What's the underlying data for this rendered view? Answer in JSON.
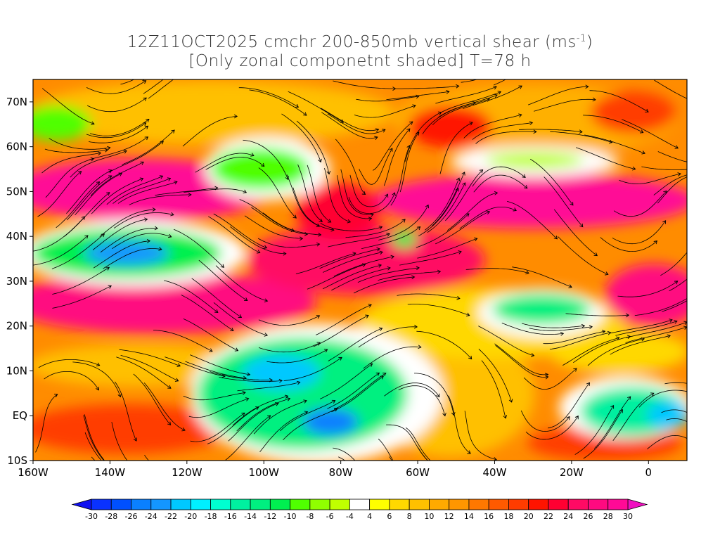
{
  "title": {
    "line1": "12Z11OCT2025 cmchr 200-850mb vertical shear (ms",
    "line1_sup": "-1",
    "line1_end": ")",
    "line2": "[Only zonal componetnt shaded] T=78 h"
  },
  "axes": {
    "lat_labels": [
      {
        "label": "70N",
        "lat": 70
      },
      {
        "label": "60N",
        "lat": 60
      },
      {
        "label": "50N",
        "lat": 50
      },
      {
        "label": "40N",
        "lat": 40
      },
      {
        "label": "30N",
        "lat": 30
      },
      {
        "label": "20N",
        "lat": 20
      },
      {
        "label": "10N",
        "lat": 10
      },
      {
        "label": "EQ",
        "lat": 0
      },
      {
        "label": "10S",
        "lat": -10
      }
    ],
    "lon_labels": [
      {
        "label": "160W",
        "lon": -160
      },
      {
        "label": "140W",
        "lon": -140
      },
      {
        "label": "120W",
        "lon": -120
      },
      {
        "label": "100W",
        "lon": -100
      },
      {
        "label": "80W",
        "lon": -80
      },
      {
        "label": "60W",
        "lon": -60
      },
      {
        "label": "40W",
        "lon": -40
      },
      {
        "label": "20W",
        "lon": -20
      },
      {
        "label": "0",
        "lon": 0
      }
    ],
    "lon_range": [
      -160,
      10
    ],
    "lat_range": [
      -10,
      75
    ]
  },
  "colorbar": {
    "labels": [
      "-30",
      "-28",
      "-26",
      "-24",
      "-22",
      "-20",
      "-18",
      "-16",
      "-14",
      "-12",
      "-10",
      "-8",
      "-6",
      "-4",
      "4",
      "6",
      "8",
      "10",
      "12",
      "14",
      "16",
      "18",
      "20",
      "22",
      "24",
      "26",
      "28",
      "30"
    ],
    "colors": [
      "#0a32ff",
      "#0050ff",
      "#0a80ff",
      "#1496ff",
      "#00c8ff",
      "#00f0ff",
      "#00ffd0",
      "#00f0a0",
      "#00f080",
      "#00f050",
      "#50ff00",
      "#90ff00",
      "#c0ff00",
      "#ffffff",
      "#ffff00",
      "#ffd800",
      "#ffc000",
      "#ffaa00",
      "#ff9600",
      "#ff7800",
      "#ff5a00",
      "#ff3c00",
      "#ff1400",
      "#ff0032",
      "#ff0a64",
      "#ff0a80",
      "#ff0a96"
    ],
    "low_color": "#1010f0",
    "high_color": "#f010c0"
  }
}
